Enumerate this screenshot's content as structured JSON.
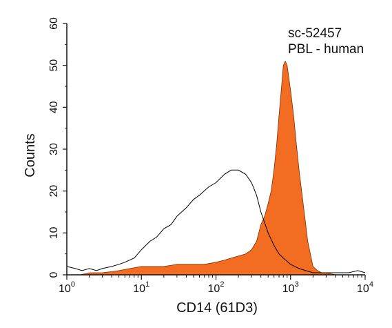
{
  "chart_data": {
    "type": "area",
    "xlabel": "CD14 (61D3)",
    "ylabel": "Counts",
    "x_scale": "log",
    "xlim": [
      1,
      10000
    ],
    "ylim": [
      0,
      60
    ],
    "x_ticks": [
      {
        "value": 1,
        "base": "10",
        "exp": "0"
      },
      {
        "value": 10,
        "base": "10",
        "exp": "1"
      },
      {
        "value": 100,
        "base": "10",
        "exp": "2"
      },
      {
        "value": 1000,
        "base": "10",
        "exp": "3"
      },
      {
        "value": 10000,
        "base": "10",
        "exp": "4"
      }
    ],
    "y_ticks": [
      "0",
      "10",
      "20",
      "30",
      "40",
      "50",
      "60"
    ],
    "annotations": [
      "sc-52457",
      "PBL - human"
    ],
    "grid": false,
    "series": [
      {
        "style": "outline",
        "color": "#000000",
        "x": [
          1,
          1.3,
          1.6,
          2,
          2.5,
          3,
          4,
          5,
          6,
          8,
          10,
          13,
          16,
          20,
          25,
          30,
          40,
          50,
          60,
          80,
          100,
          130,
          160,
          200,
          250,
          300,
          350,
          400,
          500,
          600,
          700,
          800,
          1000,
          1300,
          1600,
          2000,
          2500,
          3000,
          4000,
          5000,
          6000,
          8000,
          10000
        ],
        "y": [
          2,
          1.5,
          1,
          1.5,
          1,
          1.5,
          2,
          2.5,
          3,
          4,
          6,
          8,
          9,
          11,
          12,
          14,
          16,
          18,
          19,
          21,
          22,
          24,
          25,
          25,
          24,
          22,
          19,
          15,
          10,
          7,
          5,
          4,
          2.5,
          1.5,
          1,
          0.5,
          0.5,
          0.5,
          0.5,
          0.5,
          0.5,
          1,
          0.5
        ]
      },
      {
        "style": "filled",
        "color": "#f26d21",
        "x": [
          1,
          1.5,
          2,
          3,
          5,
          7,
          10,
          15,
          20,
          30,
          50,
          70,
          100,
          130,
          160,
          200,
          250,
          300,
          350,
          400,
          450,
          500,
          550,
          600,
          650,
          700,
          750,
          800,
          850,
          900,
          950,
          1000,
          1100,
          1200,
          1300,
          1500,
          1700,
          2000,
          2300,
          2600,
          3000,
          4000,
          6000,
          10000
        ],
        "y": [
          0,
          0,
          0.5,
          0.5,
          1,
          1.5,
          2,
          2,
          2,
          2.5,
          2.5,
          2.5,
          3,
          3.5,
          4,
          4.5,
          5,
          6,
          8,
          12,
          14,
          17,
          20,
          25,
          31,
          38,
          44,
          50,
          51,
          50,
          47,
          44,
          38,
          31,
          25,
          16,
          8,
          2,
          1,
          0.5,
          0.5,
          0,
          0,
          0
        ]
      }
    ]
  }
}
